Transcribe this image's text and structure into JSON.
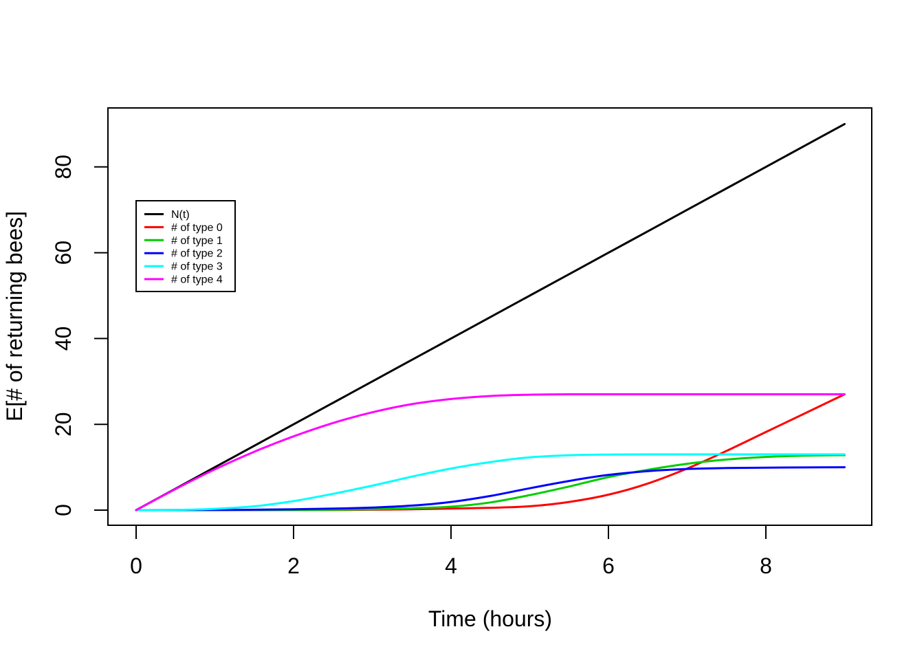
{
  "figure": {
    "background": "#ffffff",
    "plot_background": "#ffffff"
  },
  "chart_data": {
    "type": "line",
    "title": "",
    "xlabel": "Time (hours)",
    "ylabel": "E[# of returning bees]",
    "x_ticks": [
      0,
      2,
      4,
      6,
      8
    ],
    "y_ticks": [
      0,
      20,
      40,
      60,
      80
    ],
    "xlim": [
      -0.36,
      9.36
    ],
    "ylim": [
      -3.6,
      93.6
    ],
    "grid": false,
    "legend_position": "upper-left-inset",
    "x": [
      0,
      0.5,
      1,
      1.5,
      2,
      2.5,
      3,
      3.5,
      4,
      4.5,
      5,
      5.5,
      6,
      6.5,
      7,
      7.5,
      8,
      8.5,
      9
    ],
    "series": [
      {
        "name": "N(t)",
        "color": "#000000",
        "values": [
          0,
          5,
          10,
          15,
          20,
          25,
          30,
          35,
          40,
          45,
          50,
          55,
          60,
          65,
          70,
          75,
          80,
          85,
          90
        ]
      },
      {
        "name": "# of type 0",
        "color": "#FF0000",
        "values": [
          0,
          0,
          0,
          0.01,
          0.02,
          0.05,
          0.1,
          0.2,
          0.35,
          0.55,
          0.9,
          1.9,
          3.6,
          6.2,
          9.7,
          13.8,
          18.2,
          22.6,
          27
        ]
      },
      {
        "name": "# of type 1",
        "color": "#00CD00",
        "values": [
          0,
          0,
          0.01,
          0.02,
          0.05,
          0.1,
          0.2,
          0.45,
          0.8,
          1.8,
          3.5,
          5.5,
          7.7,
          9.4,
          10.8,
          11.8,
          12.4,
          12.7,
          12.8
        ]
      },
      {
        "name": "# of type 2",
        "color": "#0000FF",
        "values": [
          0,
          0.02,
          0.05,
          0.1,
          0.2,
          0.35,
          0.6,
          1.05,
          1.9,
          3.3,
          5.1,
          6.8,
          8.2,
          9.1,
          9.6,
          9.8,
          9.9,
          9.95,
          10
        ]
      },
      {
        "name": "# of type 3",
        "color": "#00FFFF",
        "values": [
          0,
          0.05,
          0.3,
          0.9,
          2.1,
          3.8,
          5.7,
          7.8,
          9.7,
          11.2,
          12.3,
          12.8,
          12.95,
          13,
          13,
          13,
          13,
          13,
          13
        ]
      },
      {
        "name": "# of type 4",
        "color": "#FF00FF",
        "values": [
          0,
          4.9,
          9.5,
          13.6,
          17.2,
          20.3,
          22.8,
          24.7,
          25.9,
          26.6,
          26.9,
          27,
          27,
          27,
          27,
          27,
          27,
          27,
          27
        ]
      }
    ]
  }
}
